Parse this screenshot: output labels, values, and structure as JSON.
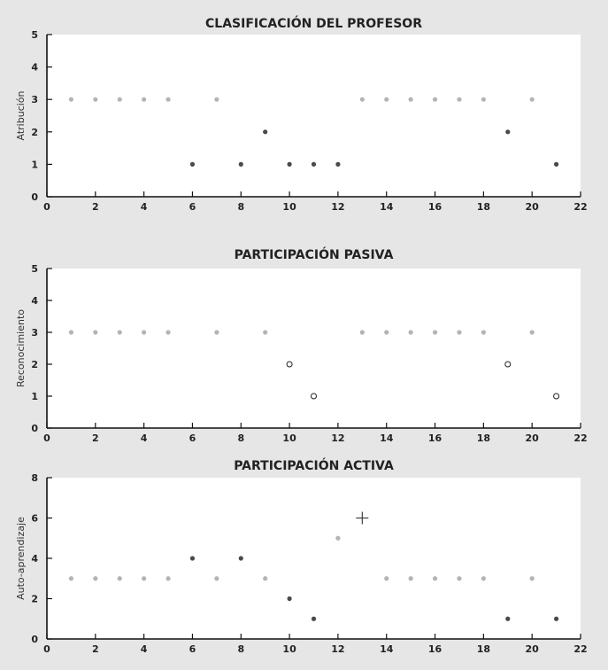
{
  "chart_data": [
    {
      "type": "scatter",
      "title": "CLASIFICACIÓN DEL PROFESOR",
      "xlabel": "",
      "ylabel": "Atribución",
      "xlim": [
        0,
        22
      ],
      "ylim": [
        0,
        5
      ],
      "xticks": [
        0,
        2,
        4,
        6,
        8,
        10,
        12,
        14,
        16,
        18,
        20,
        22
      ],
      "yticks": [
        0,
        1,
        2,
        3,
        4,
        5
      ],
      "grid": false,
      "points": [
        {
          "x": 1,
          "y": 3,
          "style": "light-dot"
        },
        {
          "x": 2,
          "y": 3,
          "style": "light-dot"
        },
        {
          "x": 3,
          "y": 3,
          "style": "light-dot"
        },
        {
          "x": 4,
          "y": 3,
          "style": "light-dot"
        },
        {
          "x": 5,
          "y": 3,
          "style": "light-dot"
        },
        {
          "x": 6,
          "y": 1,
          "style": "dark-dot"
        },
        {
          "x": 7,
          "y": 3,
          "style": "light-dot"
        },
        {
          "x": 8,
          "y": 1,
          "style": "dark-dot"
        },
        {
          "x": 9,
          "y": 2,
          "style": "dark-dot"
        },
        {
          "x": 10,
          "y": 1,
          "style": "dark-dot"
        },
        {
          "x": 11,
          "y": 1,
          "style": "dark-dot"
        },
        {
          "x": 12,
          "y": 1,
          "style": "dark-dot"
        },
        {
          "x": 13,
          "y": 3,
          "style": "light-dot"
        },
        {
          "x": 14,
          "y": 3,
          "style": "light-dot"
        },
        {
          "x": 15,
          "y": 3,
          "style": "light-dot"
        },
        {
          "x": 16,
          "y": 3,
          "style": "light-dot"
        },
        {
          "x": 17,
          "y": 3,
          "style": "light-dot"
        },
        {
          "x": 18,
          "y": 3,
          "style": "light-dot"
        },
        {
          "x": 19,
          "y": 2,
          "style": "dark-dot"
        },
        {
          "x": 20,
          "y": 3,
          "style": "light-dot"
        },
        {
          "x": 21,
          "y": 1,
          "style": "dark-dot"
        }
      ]
    },
    {
      "type": "scatter",
      "title": "PARTICIPACIÓN PASIVA",
      "xlabel": "",
      "ylabel": "Reconocimiento",
      "xlim": [
        0,
        22
      ],
      "ylim": [
        0,
        5
      ],
      "xticks": [
        0,
        2,
        4,
        6,
        8,
        10,
        12,
        14,
        16,
        18,
        20,
        22
      ],
      "yticks": [
        0,
        1,
        2,
        3,
        4,
        5
      ],
      "grid": false,
      "points": [
        {
          "x": 1,
          "y": 3,
          "style": "light-dot"
        },
        {
          "x": 2,
          "y": 3,
          "style": "light-dot"
        },
        {
          "x": 3,
          "y": 3,
          "style": "light-dot"
        },
        {
          "x": 4,
          "y": 3,
          "style": "light-dot"
        },
        {
          "x": 5,
          "y": 3,
          "style": "light-dot"
        },
        {
          "x": 7,
          "y": 3,
          "style": "light-dot"
        },
        {
          "x": 9,
          "y": 3,
          "style": "light-dot"
        },
        {
          "x": 10,
          "y": 2,
          "style": "open-circle"
        },
        {
          "x": 11,
          "y": 1,
          "style": "open-circle"
        },
        {
          "x": 13,
          "y": 3,
          "style": "light-dot"
        },
        {
          "x": 14,
          "y": 3,
          "style": "light-dot"
        },
        {
          "x": 15,
          "y": 3,
          "style": "light-dot"
        },
        {
          "x": 16,
          "y": 3,
          "style": "light-dot"
        },
        {
          "x": 17,
          "y": 3,
          "style": "light-dot"
        },
        {
          "x": 18,
          "y": 3,
          "style": "light-dot"
        },
        {
          "x": 19,
          "y": 2,
          "style": "open-circle"
        },
        {
          "x": 20,
          "y": 3,
          "style": "light-dot"
        },
        {
          "x": 21,
          "y": 1,
          "style": "open-circle"
        }
      ]
    },
    {
      "type": "scatter",
      "title": "PARTICIPACIÓN ACTIVA",
      "xlabel": "",
      "ylabel": "Auto-aprendizaje",
      "xlim": [
        0,
        22
      ],
      "ylim": [
        0,
        8
      ],
      "xticks": [
        0,
        2,
        4,
        6,
        8,
        10,
        12,
        14,
        16,
        18,
        20,
        22
      ],
      "yticks": [
        0,
        2,
        4,
        6,
        8
      ],
      "grid": false,
      "points": [
        {
          "x": 1,
          "y": 3,
          "style": "light-dot"
        },
        {
          "x": 2,
          "y": 3,
          "style": "light-dot"
        },
        {
          "x": 3,
          "y": 3,
          "style": "light-dot"
        },
        {
          "x": 4,
          "y": 3,
          "style": "light-dot"
        },
        {
          "x": 5,
          "y": 3,
          "style": "light-dot"
        },
        {
          "x": 6,
          "y": 4,
          "style": "dark-dot"
        },
        {
          "x": 7,
          "y": 3,
          "style": "light-dot"
        },
        {
          "x": 8,
          "y": 4,
          "style": "dark-dot"
        },
        {
          "x": 9,
          "y": 3,
          "style": "light-dot"
        },
        {
          "x": 10,
          "y": 2,
          "style": "dark-dot"
        },
        {
          "x": 11,
          "y": 1,
          "style": "dark-dot"
        },
        {
          "x": 12,
          "y": 5,
          "style": "light-dot"
        },
        {
          "x": 13,
          "y": 6,
          "style": "plus"
        },
        {
          "x": 14,
          "y": 3,
          "style": "light-dot"
        },
        {
          "x": 15,
          "y": 3,
          "style": "light-dot"
        },
        {
          "x": 16,
          "y": 3,
          "style": "light-dot"
        },
        {
          "x": 17,
          "y": 3,
          "style": "light-dot"
        },
        {
          "x": 18,
          "y": 3,
          "style": "light-dot"
        },
        {
          "x": 19,
          "y": 1,
          "style": "dark-dot"
        },
        {
          "x": 20,
          "y": 3,
          "style": "light-dot"
        },
        {
          "x": 21,
          "y": 1,
          "style": "dark-dot"
        }
      ]
    }
  ],
  "colors": {
    "page_background": "#e6e6e6",
    "plot_background": "#ffffff",
    "axis": "#111111",
    "light_dot": "#b4b4b4",
    "dark_dot": "#4a4a4a",
    "open_circle": "#222222",
    "plus": "#333333"
  }
}
